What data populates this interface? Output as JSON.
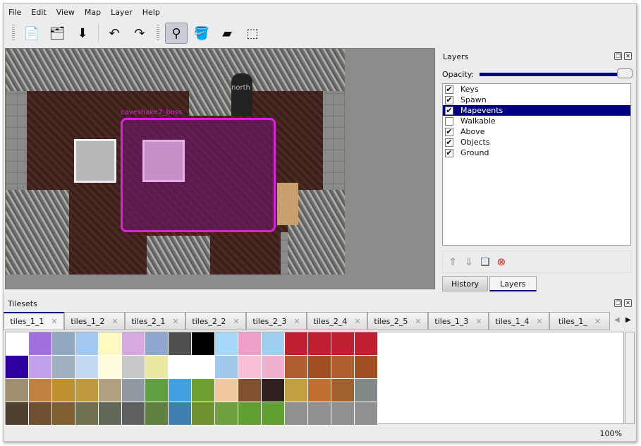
{
  "menu": [
    "File",
    "Edit",
    "View",
    "Map",
    "Layer",
    "Help"
  ],
  "toolbar": [
    {
      "name": "new-icon",
      "g": "📄"
    },
    {
      "name": "open-icon",
      "g": "🗂"
    },
    {
      "name": "save-icon",
      "g": "⬇"
    },
    {
      "name": "undo-icon",
      "g": "↶"
    },
    {
      "name": "redo-icon",
      "g": "↷"
    },
    {
      "name": "stamp-brush-icon",
      "g": "⚲"
    },
    {
      "name": "bucket-fill-icon",
      "g": "🪣"
    },
    {
      "name": "eraser-icon",
      "g": "▰"
    },
    {
      "name": "rect-select-icon",
      "g": "⬚"
    }
  ],
  "map": {
    "labels": {
      "event": "caveshake2_boss",
      "north": "north"
    },
    "event_color": "#e020e0"
  },
  "layers": {
    "title": "Layers",
    "opacity_label": "Opacity:",
    "opacity": 100,
    "items": [
      {
        "label": "Keys",
        "checked": true
      },
      {
        "label": "Spawn",
        "checked": true
      },
      {
        "label": "Mapevents",
        "checked": true,
        "selected": true
      },
      {
        "label": "Walkable",
        "checked": false
      },
      {
        "label": "Above",
        "checked": true
      },
      {
        "label": "Objects",
        "checked": true
      },
      {
        "label": "Ground",
        "checked": true
      }
    ],
    "tabs": [
      "History",
      "Layers"
    ],
    "active_tab": "Layers"
  },
  "tilesets": {
    "title": "Tilesets",
    "tabs": [
      "tiles_1_1",
      "tiles_1_2",
      "tiles_2_1",
      "tiles_2_2",
      "tiles_2_3",
      "tiles_2_4",
      "tiles_2_5",
      "tiles_1_3",
      "tiles_1_4",
      "tiles_1_"
    ],
    "tile_colors": [
      "#fff",
      "#a070e0",
      "#90a8c0",
      "#a0c8f0",
      "#fff8c0",
      "#d8a8e0",
      "#90a8d0",
      "#505050",
      "#000",
      "#a8d8f8",
      "#f0a0c8",
      "#a0d0f0",
      "#c02030",
      "#c02030",
      "#c02030",
      "#c02030",
      "#3000a0",
      "#c0a0e8",
      "#a0b0c0",
      "#c0d8f0",
      "#fffce0",
      "#c8c8c8",
      "#e8e8a0",
      "#fff",
      "#fff",
      "#a0c8e8",
      "#f8c0d8",
      "#f0b0d0",
      "#b06030",
      "#a05020",
      "#b06030",
      "#a05020",
      "#a09070",
      "#c08040",
      "#c09030",
      "#c09840",
      "#b0a080",
      "#9098a0",
      "#60a040",
      "#40a0e0",
      "#70a030",
      "#f0c8a0",
      "#805030",
      "#302020",
      "#c0a040",
      "#c07030",
      "#a06030",
      "#808888",
      "#504030",
      "#705030",
      "#806030",
      "#707050",
      "#606858",
      "#606060",
      "#608040",
      "#4080b0",
      "#709030",
      "#70a040",
      "#60a030",
      "#60a030",
      "#909090",
      "#909090",
      "#909090",
      "#909090"
    ]
  },
  "status": {
    "zoom": "100%"
  }
}
